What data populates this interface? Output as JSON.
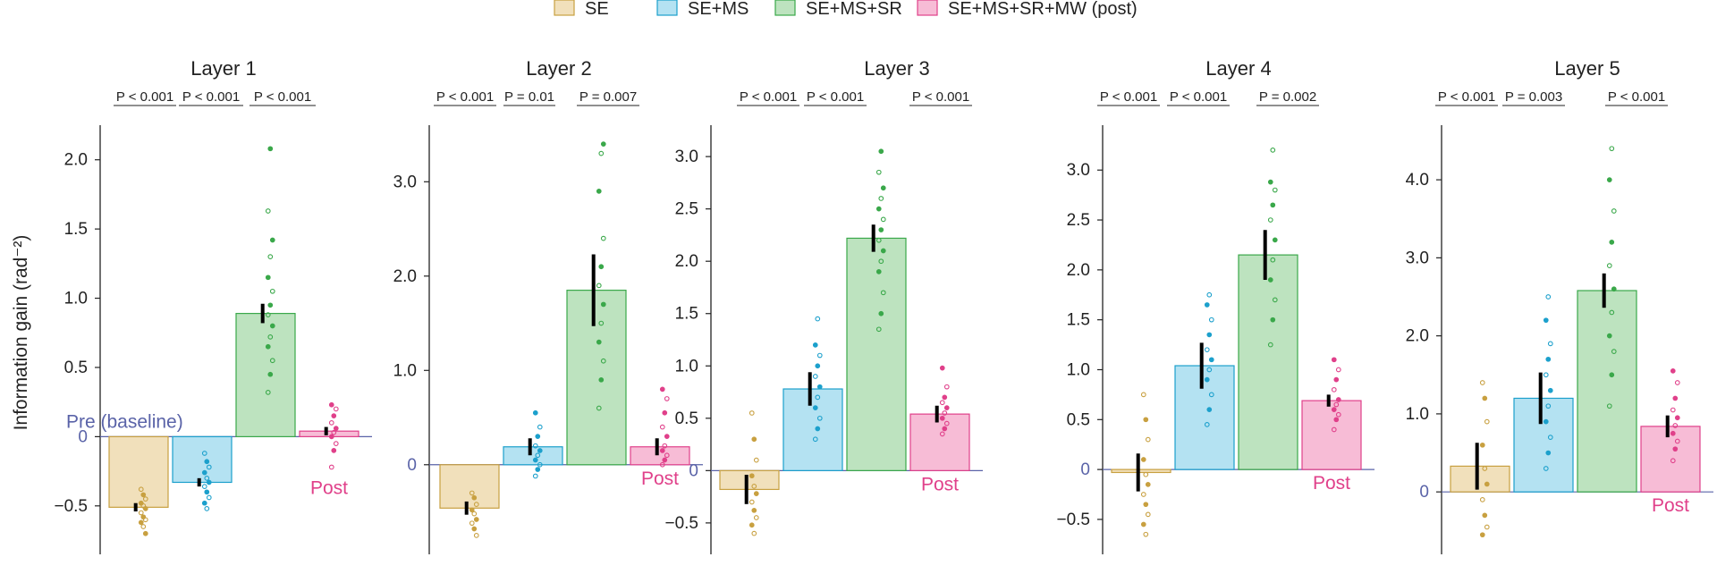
{
  "legend": [
    {
      "label": "SE",
      "color": "#c8a040",
      "fill": "#f1e0bb"
    },
    {
      "label": "SE+MS",
      "color": "#1ca0cc",
      "fill": "#b4e2f2"
    },
    {
      "label": "SE+MS+SR",
      "color": "#3aa84a",
      "fill": "#bde3bf"
    },
    {
      "label": "SE+MS+SR+MW (post)",
      "color": "#e0408a",
      "fill": "#f7bcd6"
    }
  ],
  "ylabel": "Information gain (rad⁻²)",
  "pre_label": "Pre (baseline)",
  "post_label": "Post",
  "chart_data": [
    {
      "type": "bar",
      "title": "Layer 1",
      "categories": [
        "SE",
        "SE+MS",
        "SE+MS+SR",
        "SE+MS+SR+MW (post)"
      ],
      "values": [
        -0.51,
        -0.33,
        0.89,
        0.04
      ],
      "errors": [
        0.03,
        0.03,
        0.07,
        0.03
      ],
      "yticks": [
        -0.5,
        0,
        0.5,
        1.0,
        1.5,
        2.0
      ],
      "ytick_labels": [
        "−0.5",
        "0",
        "0.5",
        "1.0",
        "1.5",
        "2.0"
      ],
      "ylim": [
        -0.85,
        2.25
      ],
      "pvalues": [
        "P < 0.001",
        "P < 0.001",
        "P < 0.001"
      ],
      "points": [
        [
          -0.38,
          -0.42,
          -0.45,
          -0.48,
          -0.5,
          -0.52,
          -0.55,
          -0.58,
          -0.6,
          -0.62,
          -0.65,
          -0.7
        ],
        [
          -0.12,
          -0.18,
          -0.22,
          -0.26,
          -0.3,
          -0.33,
          -0.36,
          -0.4,
          -0.44,
          -0.48,
          -0.52
        ],
        [
          0.32,
          0.45,
          0.55,
          0.65,
          0.72,
          0.8,
          0.88,
          0.95,
          1.05,
          1.15,
          1.3,
          1.42,
          1.63,
          2.08
        ],
        [
          -0.22,
          -0.1,
          -0.05,
          0.0,
          0.03,
          0.06,
          0.1,
          0.15,
          0.2,
          0.23
        ]
      ]
    },
    {
      "type": "bar",
      "title": "Layer 2",
      "categories": [
        "SE",
        "SE+MS",
        "SE+MS+SR",
        "SE+MS+SR+MW (post)"
      ],
      "values": [
        -0.46,
        0.19,
        1.85,
        0.19
      ],
      "errors": [
        0.07,
        0.09,
        0.38,
        0.09
      ],
      "yticks": [
        0,
        1.0,
        2.0,
        3.0
      ],
      "ytick_labels": [
        "0",
        "1.0",
        "2.0",
        "3.0"
      ],
      "ylim": [
        -0.95,
        3.6
      ],
      "pvalues": [
        "P < 0.001",
        "P = 0.01",
        "P = 0.007"
      ],
      "points": [
        [
          -0.3,
          -0.35,
          -0.42,
          -0.48,
          -0.52,
          -0.58,
          -0.62,
          -0.68,
          -0.75
        ],
        [
          -0.12,
          -0.05,
          0.0,
          0.05,
          0.1,
          0.15,
          0.2,
          0.3,
          0.4,
          0.55
        ],
        [
          0.6,
          0.9,
          1.1,
          1.3,
          1.5,
          1.7,
          1.9,
          2.1,
          2.4,
          2.9,
          3.3,
          3.4
        ],
        [
          0.0,
          0.05,
          0.1,
          0.15,
          0.2,
          0.3,
          0.4,
          0.55,
          0.7,
          0.8
        ]
      ]
    },
    {
      "type": "bar",
      "title": "Layer 3",
      "categories": [
        "SE",
        "SE+MS",
        "SE+MS+SR",
        "SE+MS+SR+MW (post)"
      ],
      "values": [
        -0.18,
        0.78,
        2.22,
        0.54
      ],
      "errors": [
        0.14,
        0.16,
        0.13,
        0.08
      ],
      "yticks": [
        -0.5,
        0,
        0.5,
        1.0,
        1.5,
        2.0,
        2.5,
        3.0
      ],
      "ytick_labels": [
        "−0.5",
        "0",
        "0.5",
        "1.0",
        "1.5",
        "2.0",
        "2.5",
        "3.0"
      ],
      "ylim": [
        -0.8,
        3.3
      ],
      "pvalues": [
        "P < 0.001",
        "P < 0.001",
        "P < 0.001"
      ],
      "points": [
        [
          0.55,
          0.3,
          0.1,
          -0.05,
          -0.15,
          -0.22,
          -0.3,
          -0.38,
          -0.45,
          -0.52,
          -0.6
        ],
        [
          0.3,
          0.4,
          0.5,
          0.6,
          0.7,
          0.8,
          0.9,
          1.0,
          1.1,
          1.2,
          1.45
        ],
        [
          1.35,
          1.5,
          1.7,
          1.9,
          2.0,
          2.1,
          2.2,
          2.3,
          2.4,
          2.5,
          2.6,
          2.7,
          2.85,
          3.05
        ],
        [
          0.35,
          0.4,
          0.45,
          0.5,
          0.55,
          0.6,
          0.65,
          0.7,
          0.8,
          0.98
        ]
      ]
    },
    {
      "type": "bar",
      "title": "Layer 4",
      "categories": [
        "SE",
        "SE+MS",
        "SE+MS+SR",
        "SE+MS+SR+MW (post)"
      ],
      "values": [
        -0.03,
        1.04,
        2.15,
        0.69
      ],
      "errors": [
        0.19,
        0.23,
        0.25,
        0.06
      ],
      "yticks": [
        -0.5,
        0,
        0.5,
        1.0,
        1.5,
        2.0,
        2.5,
        3.0
      ],
      "ytick_labels": [
        "−0.5",
        "0",
        "0.5",
        "1.0",
        "1.5",
        "2.0",
        "2.5",
        "3.0"
      ],
      "ylim": [
        -0.85,
        3.45
      ],
      "pvalues": [
        "P < 0.001",
        "P < 0.001",
        "P = 0.002"
      ],
      "points": [
        [
          0.75,
          0.5,
          0.3,
          0.1,
          -0.05,
          -0.15,
          -0.25,
          -0.35,
          -0.45,
          -0.55,
          -0.65
        ],
        [
          0.45,
          0.6,
          0.75,
          0.9,
          1.0,
          1.1,
          1.2,
          1.35,
          1.5,
          1.65,
          1.75
        ],
        [
          1.25,
          1.5,
          1.7,
          1.9,
          2.1,
          2.3,
          2.5,
          2.65,
          2.8,
          2.88,
          3.2
        ],
        [
          0.4,
          0.5,
          0.55,
          0.6,
          0.65,
          0.7,
          0.8,
          0.9,
          1.0,
          1.1
        ]
      ]
    },
    {
      "type": "bar",
      "title": "Layer 5",
      "categories": [
        "SE",
        "SE+MS",
        "SE+MS+SR",
        "SE+MS+SR+MW (post)"
      ],
      "values": [
        0.33,
        1.2,
        2.58,
        0.84
      ],
      "errors": [
        0.3,
        0.33,
        0.22,
        0.14
      ],
      "yticks": [
        0,
        1.0,
        2.0,
        3.0,
        4.0
      ],
      "ytick_labels": [
        "0",
        "1.0",
        "2.0",
        "3.0",
        "4.0"
      ],
      "ylim": [
        -0.8,
        4.7
      ],
      "pvalues": [
        "P < 0.001",
        "P = 0.003",
        "P < 0.001"
      ],
      "points": [
        [
          1.4,
          1.2,
          0.9,
          0.6,
          0.3,
          0.1,
          -0.1,
          -0.3,
          -0.45,
          -0.55
        ],
        [
          0.3,
          0.5,
          0.7,
          0.9,
          1.1,
          1.3,
          1.5,
          1.7,
          1.9,
          2.2,
          2.5
        ],
        [
          1.1,
          1.5,
          1.8,
          2.0,
          2.3,
          2.6,
          2.9,
          3.2,
          3.6,
          4.0,
          4.4
        ],
        [
          0.4,
          0.55,
          0.65,
          0.75,
          0.85,
          0.95,
          1.05,
          1.2,
          1.4,
          1.55
        ]
      ]
    }
  ]
}
